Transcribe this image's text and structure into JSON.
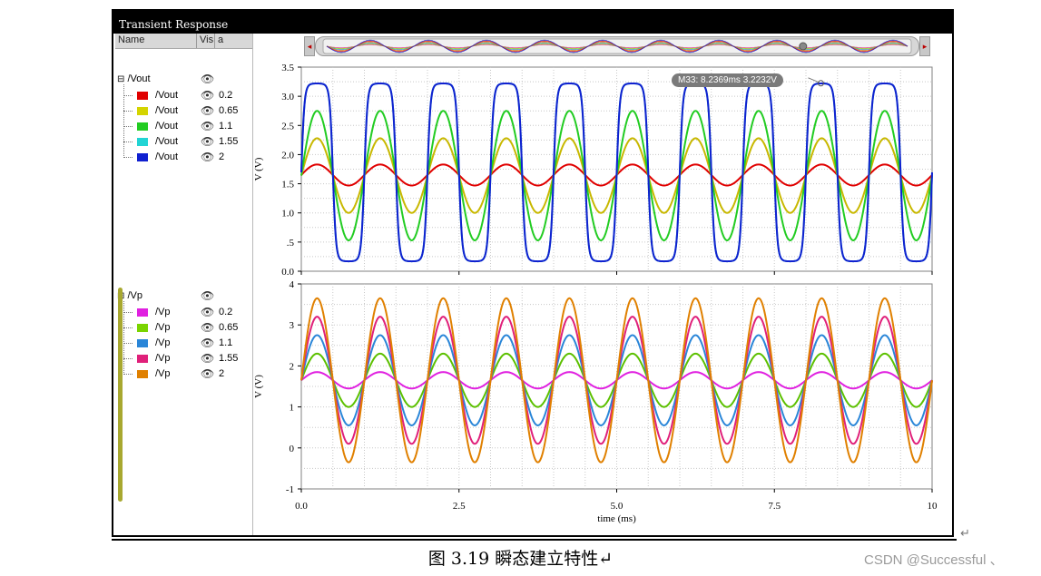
{
  "window": {
    "title": "Transient Response"
  },
  "legend_header": {
    "name": "Name",
    "vis": "Vis",
    "a": "a"
  },
  "groups": [
    {
      "name": "/Vout",
      "items": [
        {
          "name": "/Vout",
          "value": "0.2",
          "color": "#e00000"
        },
        {
          "name": "/Vout",
          "value": "0.65",
          "color": "#d4d400"
        },
        {
          "name": "/Vout",
          "value": "1.1",
          "color": "#22cc22"
        },
        {
          "name": "/Vout",
          "value": "1.55",
          "color": "#22d4d4"
        },
        {
          "name": "/Vout",
          "value": "2",
          "color": "#1020d0"
        }
      ]
    },
    {
      "name": "/Vp",
      "items": [
        {
          "name": "/Vp",
          "value": "0.2",
          "color": "#e020e0"
        },
        {
          "name": "/Vp",
          "value": "0.65",
          "color": "#7ad400"
        },
        {
          "name": "/Vp",
          "value": "1.1",
          "color": "#2a86d8"
        },
        {
          "name": "/Vp",
          "value": "1.55",
          "color": "#e0207a"
        },
        {
          "name": "/Vp",
          "value": "2",
          "color": "#e08000"
        }
      ]
    }
  ],
  "marker": {
    "label": "M33: 8.2369ms 3.2232V"
  },
  "caption": "图 3.19  瞬态建立特性↵",
  "watermark": "CSDN @Successful 、",
  "chart_data": [
    {
      "type": "line",
      "title": "",
      "xlabel": "time (ms)",
      "ylabel": "V (V)",
      "xlim": [
        0,
        10
      ],
      "ylim": [
        0,
        3.5
      ],
      "xticks": [
        "0.0",
        "2.5",
        "5.0",
        "7.5",
        "10"
      ],
      "yticks": [
        "0.0",
        ".5",
        "1.0",
        "1.5",
        "2.0",
        "2.5",
        "3.0",
        "3.5"
      ],
      "grid": true,
      "signal": {
        "period_ms": 1.0,
        "phase_ms": 0.0,
        "offset": 1.65
      },
      "series": [
        {
          "name": "/Vout 0.2",
          "color": "#e00000",
          "min": 1.47,
          "max": 1.83,
          "shape": "sine"
        },
        {
          "name": "/Vout 0.65",
          "color": "#c8b800",
          "min": 1.0,
          "max": 2.28,
          "shape": "sine"
        },
        {
          "name": "/Vout 1.1",
          "color": "#22cc22",
          "min": 0.53,
          "max": 2.75,
          "shape": "sine"
        },
        {
          "name": "/Vout 1.55",
          "color": "#22c8c8",
          "min": 0.17,
          "max": 3.22,
          "shape": "clipped"
        },
        {
          "name": "/Vout 2",
          "color": "#1020d0",
          "min": 0.17,
          "max": 3.22,
          "shape": "clipped"
        }
      ],
      "marker": {
        "name": "M33",
        "x": 8.2369,
        "y": 3.2232
      }
    },
    {
      "type": "line",
      "title": "",
      "xlabel": "time (ms)",
      "ylabel": "V (V)",
      "xlim": [
        0,
        10
      ],
      "ylim": [
        -1,
        4
      ],
      "xticks": [
        "0.0",
        "2.5",
        "5.0",
        "7.5",
        "10"
      ],
      "yticks": [
        "-1",
        "0",
        "1",
        "2",
        "3",
        "4"
      ],
      "grid": true,
      "signal": {
        "period_ms": 1.0,
        "phase_ms": 0.0,
        "offset": 1.65
      },
      "series": [
        {
          "name": "/Vp 0.2",
          "color": "#e020e0",
          "min": 1.45,
          "max": 1.85,
          "shape": "sine"
        },
        {
          "name": "/Vp 0.65",
          "color": "#5cc000",
          "min": 1.0,
          "max": 2.3,
          "shape": "sine"
        },
        {
          "name": "/Vp 1.1",
          "color": "#2a86d8",
          "min": 0.55,
          "max": 2.75,
          "shape": "sine"
        },
        {
          "name": "/Vp 1.55",
          "color": "#e0207a",
          "min": 0.1,
          "max": 3.2,
          "shape": "sine"
        },
        {
          "name": "/Vp 2",
          "color": "#e08000",
          "min": -0.35,
          "max": 3.65,
          "shape": "sine"
        }
      ]
    }
  ]
}
